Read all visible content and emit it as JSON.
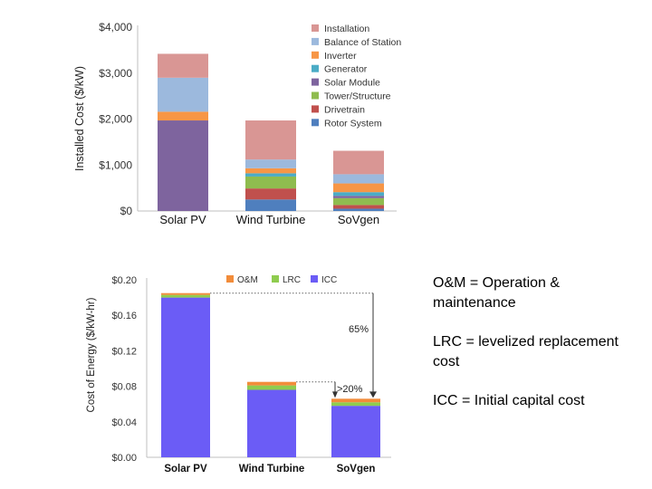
{
  "chart_data": [
    {
      "type": "bar",
      "stacked": true,
      "ylabel": "Installed Cost ($/kW)",
      "yticks": [
        "$0",
        "$1,000",
        "$2,000",
        "$3,000",
        "$4,000"
      ],
      "ylim": [
        0,
        4000
      ],
      "categories": [
        "Solar PV",
        "Wind Turbine",
        "SoVgen"
      ],
      "legend_position": "right",
      "grid": false,
      "series": [
        {
          "name": "Rotor System",
          "color": "#4f7fbe",
          "values": [
            0,
            250,
            50
          ]
        },
        {
          "name": "Drivetrain",
          "color": "#c0504d",
          "values": [
            0,
            240,
            80
          ]
        },
        {
          "name": "Tower/Structure",
          "color": "#8fbc4f",
          "values": [
            0,
            260,
            150
          ]
        },
        {
          "name": "Solar Module",
          "color": "#7e649e",
          "values": [
            1970,
            0,
            50
          ]
        },
        {
          "name": "Generator",
          "color": "#4bacc6",
          "values": [
            0,
            70,
            80
          ]
        },
        {
          "name": "Inverter",
          "color": "#f79646",
          "values": [
            190,
            110,
            190
          ]
        },
        {
          "name": "Balance of Station",
          "color": "#9cb9dd",
          "values": [
            740,
            190,
            200
          ]
        },
        {
          "name": "Installation",
          "color": "#d99694",
          "values": [
            520,
            850,
            510
          ]
        }
      ]
    },
    {
      "type": "bar",
      "stacked": true,
      "ylabel": "Cost of Energy ($/kW-hr)",
      "yticks": [
        "$0.00",
        "$0.04",
        "$0.08",
        "$0.12",
        "$0.16",
        "$0.20"
      ],
      "ylim": [
        0,
        0.2
      ],
      "categories": [
        "Solar PV",
        "Wind Turbine",
        "SoVgen"
      ],
      "legend_position": "top",
      "grid": false,
      "series": [
        {
          "name": "ICC",
          "color": "#6b5cf6",
          "values": [
            0.18,
            0.076,
            0.058
          ]
        },
        {
          "name": "LRC",
          "color": "#8fcc4f",
          "values": [
            0.003,
            0.005,
            0.004
          ]
        },
        {
          "name": "O&M",
          "color": "#f28c3a",
          "values": [
            0.002,
            0.004,
            0.004
          ]
        }
      ],
      "annotations": [
        "65%",
        ">20%"
      ]
    }
  ],
  "notes": [
    "O&M = Operation & maintenance",
    "LRC = levelized replacement cost",
    "ICC = Initial capital cost"
  ]
}
